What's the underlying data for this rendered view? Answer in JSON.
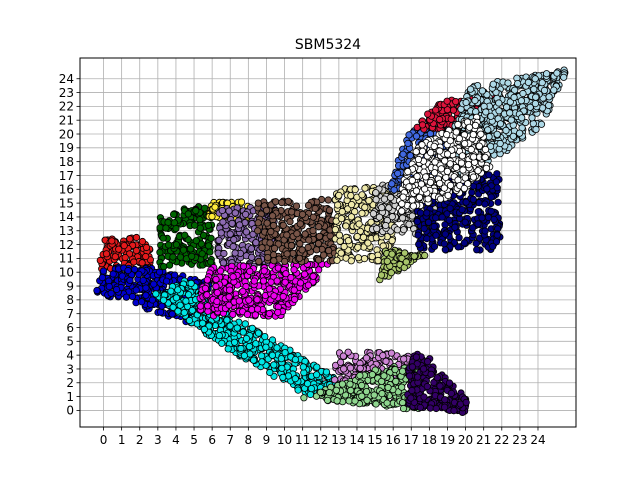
{
  "chart_data": {
    "type": "scatter",
    "title": "SBM5324",
    "xlabel": "",
    "ylabel": "",
    "x_ticks": [
      "0",
      "1",
      "2",
      "3",
      "4",
      "5",
      "6",
      "7",
      "8",
      "9",
      "10",
      "11",
      "12",
      "13",
      "14",
      "15",
      "16",
      "17",
      "18",
      "19",
      "20",
      "21",
      "22",
      "23",
      "24"
    ],
    "y_ticks": [
      "0",
      "1",
      "2",
      "3",
      "4",
      "5",
      "6",
      "7",
      "8",
      "9",
      "10",
      "11",
      "12",
      "13",
      "14",
      "15",
      "16",
      "17",
      "18",
      "19",
      "20",
      "21",
      "22",
      "23",
      "24"
    ],
    "xlim": [
      -1.3,
      26.1
    ],
    "ylim": [
      -1.2,
      25.5
    ],
    "grid": true,
    "legend": "none",
    "marker_edge_color": "#000000",
    "series": [
      {
        "color": "#e41a1c",
        "region": [
          [
            -0.2,
            10.2
          ],
          [
            2.6,
            10.2
          ],
          [
            2.6,
            12.6
          ],
          [
            -0.2,
            12.4
          ]
        ]
      },
      {
        "color": "#0000cd",
        "region": [
          [
            -0.5,
            8.6
          ],
          [
            5.9,
            5.8
          ],
          [
            5.9,
            9.2
          ],
          [
            2.4,
            10.5
          ],
          [
            0,
            10.3
          ]
        ]
      },
      {
        "color": "#00e5e5",
        "region": [
          [
            2.8,
            8.4
          ],
          [
            4.6,
            9.5
          ],
          [
            6.5,
            7.4
          ],
          [
            12.8,
            2.4
          ],
          [
            12.9,
            0.9
          ],
          [
            11,
            1.2
          ],
          [
            5.9,
            5.2
          ]
        ]
      },
      {
        "color": "#006400",
        "region": [
          [
            3.1,
            10.4
          ],
          [
            6,
            10.4
          ],
          [
            6,
            14.9
          ],
          [
            3.1,
            14.3
          ]
        ]
      },
      {
        "color": "#ffeb3b",
        "region": [
          [
            5.8,
            13.9
          ],
          [
            8,
            13.9
          ],
          [
            8,
            15.1
          ],
          [
            6,
            15.1
          ]
        ]
      },
      {
        "color": "#8c6bb1",
        "region": [
          [
            6.3,
            10.4
          ],
          [
            9.5,
            10.4
          ],
          [
            9.5,
            14.7
          ],
          [
            6.3,
            14.7
          ]
        ]
      },
      {
        "color": "#ee00ee",
        "region": [
          [
            5.2,
            6.8
          ],
          [
            9.8,
            6.8
          ],
          [
            12.7,
            10.7
          ],
          [
            6,
            10.4
          ],
          [
            5.4,
            8.9
          ]
        ]
      },
      {
        "color": "#795548",
        "region": [
          [
            8.5,
            10.7
          ],
          [
            12.8,
            10.7
          ],
          [
            12.8,
            15.3
          ],
          [
            8.5,
            15.1
          ]
        ]
      },
      {
        "color": "#eee8aa",
        "region": [
          [
            12.8,
            10.8
          ],
          [
            16,
            10.8
          ],
          [
            16,
            16.2
          ],
          [
            12.8,
            16.2
          ]
        ]
      },
      {
        "color": "#d0d0d0",
        "region": [
          [
            14.8,
            12.8
          ],
          [
            18.3,
            12.6
          ],
          [
            18.3,
            16.3
          ],
          [
            15,
            16.3
          ]
        ]
      },
      {
        "color": "#a9c66b",
        "region": [
          [
            15.2,
            9.3
          ],
          [
            17.8,
            11.2
          ],
          [
            15.6,
            11.7
          ]
        ]
      },
      {
        "color": "#4169e1",
        "region": [
          [
            15.6,
            15.6
          ],
          [
            19.6,
            16.7
          ],
          [
            19.6,
            20.5
          ],
          [
            16.8,
            20.5
          ]
        ]
      },
      {
        "color": "#000080",
        "region": [
          [
            17.3,
            11.6
          ],
          [
            21.9,
            11.6
          ],
          [
            21.9,
            17.5
          ],
          [
            19.3,
            17.5
          ],
          [
            17.3,
            14.6
          ]
        ]
      },
      {
        "color": "#dc143c",
        "region": [
          [
            17.2,
            20.3
          ],
          [
            21.3,
            20.3
          ],
          [
            21.6,
            22.8
          ],
          [
            18.5,
            22.5
          ]
        ]
      },
      {
        "color": "#add8e6",
        "region": [
          [
            19.4,
            16.7
          ],
          [
            22.2,
            18.7
          ],
          [
            24.2,
            20.6
          ],
          [
            25.7,
            24.8
          ],
          [
            20.2,
            23.4
          ],
          [
            19.3,
            20.4
          ]
        ]
      },
      {
        "color": "#ffffff",
        "region": [
          [
            16.2,
            14.3
          ],
          [
            19.6,
            15.6
          ],
          [
            21.5,
            17.8
          ],
          [
            20.6,
            21.4
          ],
          [
            17.3,
            19.1
          ],
          [
            16.6,
            16.8
          ]
        ]
      },
      {
        "color": "#cd85d5",
        "region": [
          [
            12.5,
            2.1
          ],
          [
            17.5,
            2.1
          ],
          [
            17.5,
            4.1
          ],
          [
            13,
            4.3
          ]
        ]
      },
      {
        "color": "#8fd68f",
        "region": [
          [
            11,
            0.9
          ],
          [
            17.5,
            0
          ],
          [
            17.5,
            3.6
          ],
          [
            14.5,
            2.8
          ],
          [
            12.7,
            1.8
          ]
        ]
      },
      {
        "color": "#330066",
        "region": [
          [
            16.8,
            0.3
          ],
          [
            20,
            -0.2
          ],
          [
            20.1,
            0.8
          ],
          [
            17.5,
            4.5
          ],
          [
            16.8,
            3.6
          ]
        ]
      }
    ]
  }
}
